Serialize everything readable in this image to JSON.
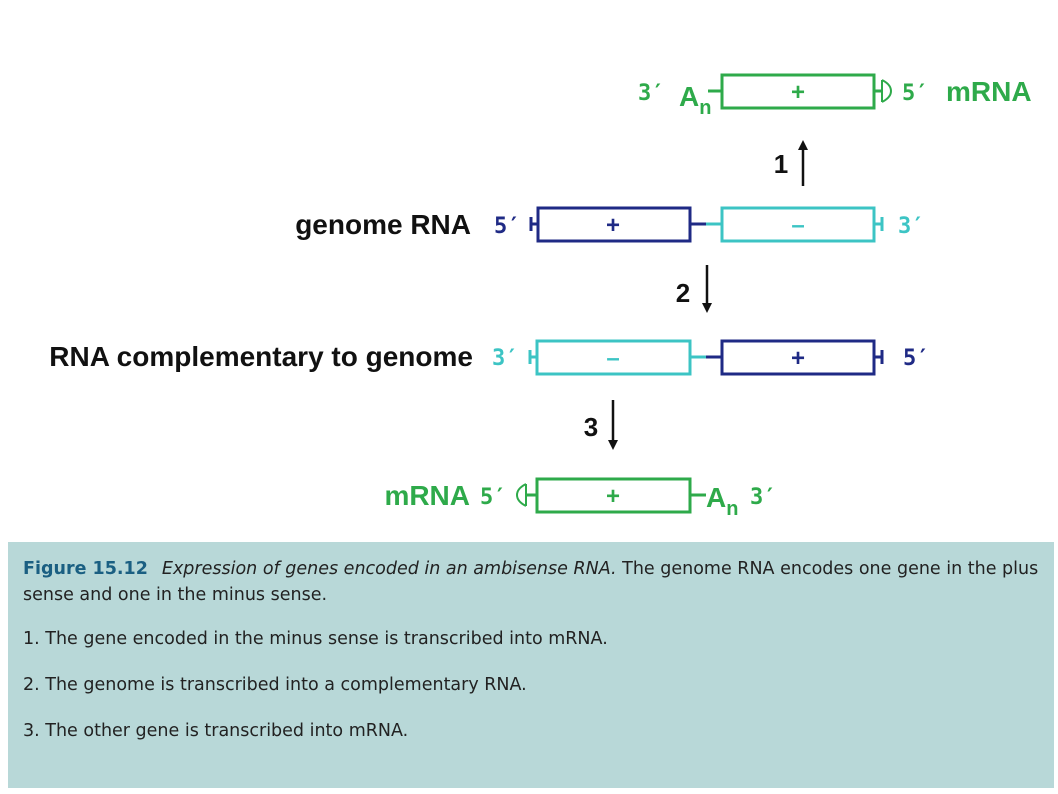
{
  "colors": {
    "mrna_green": "#2eaa4a",
    "plus_strand_navy": "#1f2a85",
    "minus_strand_teal": "#3cc4c4",
    "caption_background": "#b8d8d8",
    "figure_label_blue": "#1a5f82"
  },
  "diagram": {
    "top_mrna": {
      "label": "mRNA",
      "end_left": "3′",
      "end_right": "5′",
      "poly_a": "A",
      "poly_a_sub": "n",
      "sense": "+"
    },
    "step1": {
      "number": "1"
    },
    "genome": {
      "label": "genome RNA",
      "end_left": "5′",
      "end_right": "3′",
      "segment1_sense": "+",
      "segment2_sense": "–"
    },
    "step2": {
      "number": "2"
    },
    "complement": {
      "label": "RNA complementary to genome",
      "end_left": "3′",
      "end_right": "5′",
      "segment1_sense": "–",
      "segment2_sense": "+"
    },
    "step3": {
      "number": "3"
    },
    "bottom_mrna": {
      "label": "mRNA",
      "end_left": "5′",
      "end_right": "3′",
      "poly_a": "A",
      "poly_a_sub": "n",
      "sense": "+"
    }
  },
  "caption": {
    "figure_number": "Figure 15.12",
    "title": "Expression of genes encoded in an ambisense RNA.",
    "text": " The genome RNA encodes one gene in the plus sense and one in the minus sense.",
    "steps": [
      "1. The gene encoded in the minus sense is transcribed into mRNA.",
      "2. The genome is transcribed into a complementary RNA.",
      "3. The other gene is transcribed into mRNA."
    ]
  }
}
